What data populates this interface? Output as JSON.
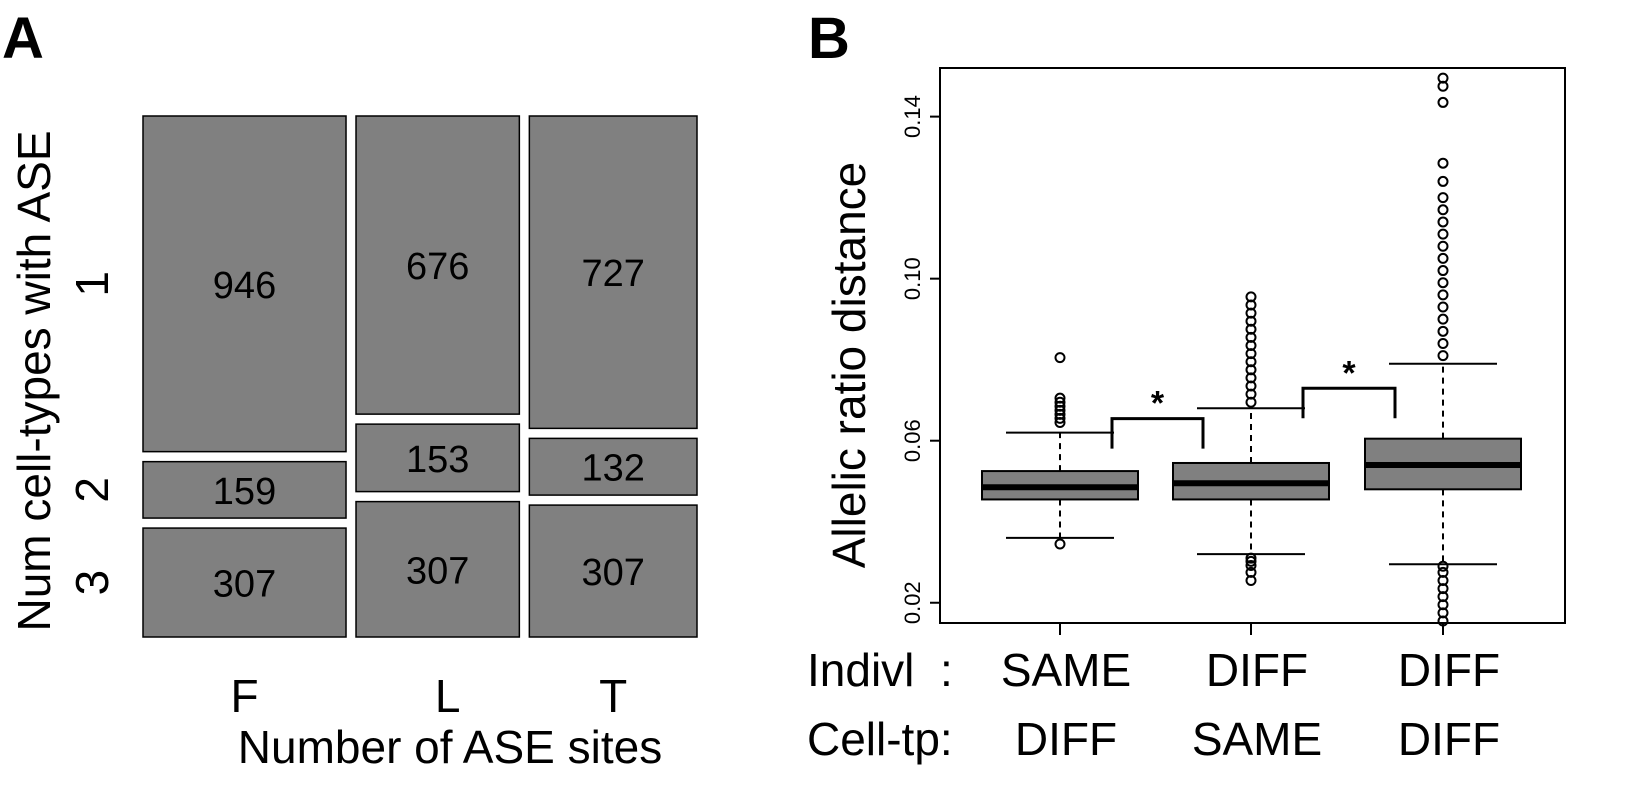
{
  "colors": {
    "box_fill": "#808080",
    "stroke": "#000000",
    "background": "#ffffff"
  },
  "chart_data": [
    {
      "type": "mosaic",
      "panel_label": "A",
      "xlabel": "Number of ASE sites",
      "ylabel": "Num cell-types with ASE",
      "columns": [
        "F",
        "L",
        "T"
      ],
      "rows": [
        "1",
        "2",
        "3"
      ],
      "values": [
        [
          946,
          676,
          727
        ],
        [
          159,
          153,
          132
        ],
        [
          307,
          307,
          307
        ]
      ]
    },
    {
      "type": "box",
      "panel_label": "B",
      "ylabel": "Allelic ratio distance",
      "ylim": [
        0.015,
        0.152
      ],
      "yticks": [
        "0.02",
        "0.06",
        "0.10",
        "0.14"
      ],
      "row_labels": [
        "Indivl  :",
        "Cell-tp:"
      ],
      "groups": [
        {
          "indivl": "SAME",
          "celltp": "DIFF",
          "q1": 0.0455,
          "median": 0.0485,
          "q3": 0.0525,
          "whisker_low": 0.036,
          "whisker_high": 0.062,
          "outliers": [
            0.0345,
            0.0645,
            0.0655,
            0.0665,
            0.0675,
            0.0685,
            0.0695,
            0.0705,
            0.0805
          ]
        },
        {
          "indivl": "DIFF",
          "celltp": "SAME",
          "q1": 0.0455,
          "median": 0.0495,
          "q3": 0.0545,
          "whisker_low": 0.032,
          "whisker_high": 0.068,
          "outliers": [
            0.0255,
            0.0275,
            0.0292,
            0.0302,
            0.031,
            0.0695,
            0.0715,
            0.0735,
            0.0755,
            0.0775,
            0.0795,
            0.0815,
            0.0835,
            0.0855,
            0.0875,
            0.0895,
            0.0915,
            0.0935,
            0.0955
          ]
        },
        {
          "indivl": "DIFF",
          "celltp": "DIFF",
          "q1": 0.048,
          "median": 0.054,
          "q3": 0.0605,
          "whisker_low": 0.0295,
          "whisker_high": 0.079,
          "outliers": [
            0.0155,
            0.0175,
            0.0195,
            0.0215,
            0.0235,
            0.0255,
            0.0275,
            0.029,
            0.081,
            0.084,
            0.087,
            0.09,
            0.093,
            0.096,
            0.099,
            0.102,
            0.105,
            0.108,
            0.111,
            0.114,
            0.117,
            0.12,
            0.124,
            0.1285,
            0.1435,
            0.1475,
            0.1495
          ]
        }
      ],
      "significance": [
        "*",
        "*"
      ]
    }
  ]
}
